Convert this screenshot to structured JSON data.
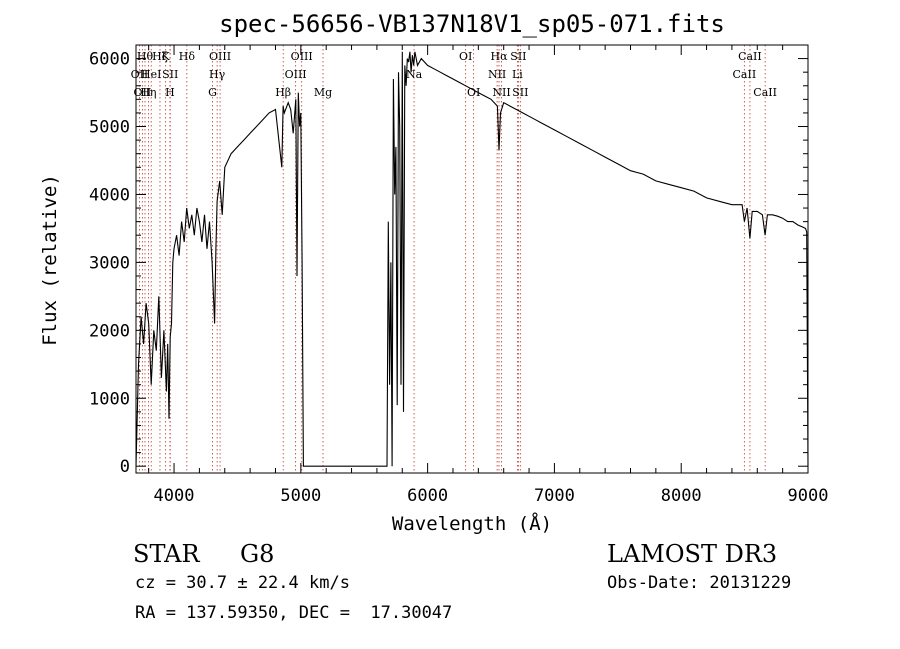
{
  "chart_data": {
    "type": "line",
    "title": "spec-56656-VB137N18V1_sp05-071.fits",
    "xlabel": "Wavelength (Å)",
    "ylabel": "Flux (relative)",
    "xlim": [
      3700,
      9000
    ],
    "ylim": [
      -100,
      6200
    ],
    "x_ticks": [
      4000,
      5000,
      6000,
      7000,
      8000,
      9000
    ],
    "y_ticks": [
      0,
      1000,
      2000,
      3000,
      4000,
      5000,
      6000
    ],
    "grid": false,
    "line_color": "#000000",
    "marker_color": "#c0392b",
    "series": [
      {
        "x": [
          3700,
          3720,
          3740,
          3760,
          3780,
          3800,
          3820,
          3840,
          3860,
          3880,
          3900,
          3920,
          3940,
          3950,
          3960,
          3970,
          3980,
          3990,
          4000,
          4020,
          4040,
          4060,
          4080,
          4100,
          4120,
          4140,
          4160,
          4180,
          4200,
          4220,
          4240,
          4260,
          4280,
          4300,
          4320,
          4330,
          4340,
          4360,
          4380,
          4400,
          4450,
          4500,
          4550,
          4600,
          4650,
          4700,
          4750,
          4800,
          4850,
          4860,
          4870,
          4900,
          4920,
          4940,
          4960,
          4970,
          4980,
          4990,
          5000,
          5010,
          5020,
          5680,
          5690,
          5700,
          5710,
          5720,
          5730,
          5740,
          5750,
          5760,
          5770,
          5780,
          5790,
          5800,
          5810,
          5820,
          5830,
          5840,
          5850,
          5860,
          5870,
          5880,
          5890,
          5900,
          5920,
          5950,
          6000,
          6050,
          6100,
          6150,
          6200,
          6250,
          6300,
          6350,
          6400,
          6450,
          6500,
          6550,
          6563,
          6575,
          6600,
          6650,
          6700,
          6750,
          6800,
          6850,
          6900,
          6950,
          7000,
          7100,
          7200,
          7300,
          7400,
          7500,
          7600,
          7700,
          7800,
          7900,
          8000,
          8100,
          8200,
          8300,
          8400,
          8480,
          8498,
          8520,
          8542,
          8560,
          8600,
          8640,
          8662,
          8680,
          8720,
          8760,
          8800,
          8840,
          8880,
          8920,
          8960,
          8980,
          8990,
          9000
        ],
        "y": [
          0,
          1500,
          2200,
          1800,
          2400,
          2100,
          1200,
          2000,
          1700,
          2500,
          1300,
          2000,
          1100,
          1800,
          700,
          1900,
          2100,
          3000,
          3200,
          3400,
          3100,
          3600,
          3300,
          3800,
          3500,
          3700,
          3400,
          3800,
          3600,
          3300,
          3700,
          3200,
          3600,
          3000,
          2100,
          3200,
          3900,
          4200,
          3700,
          4400,
          4600,
          4700,
          4800,
          4900,
          5000,
          5100,
          5200,
          5250,
          4400,
          5300,
          5200,
          5350,
          5250,
          4900,
          5400,
          2800,
          5500,
          5000,
          5200,
          3000,
          0,
          0,
          3600,
          1200,
          3000,
          0,
          5700,
          4000,
          4700,
          900,
          5800,
          5000,
          1200,
          6100,
          800,
          5900,
          5600,
          6000,
          5950,
          6100,
          5800,
          6050,
          5900,
          6100,
          5900,
          6000,
          5900,
          5850,
          5800,
          5750,
          5700,
          5650,
          5600,
          5550,
          5500,
          5450,
          5400,
          5300,
          4650,
          5200,
          5350,
          5300,
          5250,
          5200,
          5150,
          5100,
          5050,
          5000,
          4950,
          4850,
          4750,
          4650,
          4550,
          4450,
          4350,
          4300,
          4200,
          4150,
          4100,
          4050,
          3950,
          3900,
          3850,
          3850,
          3600,
          3800,
          3350,
          3750,
          3750,
          3700,
          3400,
          3700,
          3700,
          3680,
          3650,
          3600,
          3600,
          3550,
          3520,
          3500,
          3450,
          0
        ]
      }
    ],
    "lines": [
      {
        "wave": 3727,
        "label": "OII",
        "row": 2
      },
      {
        "wave": 3750,
        "label": "OII",
        "row": 3
      },
      {
        "wave": 3771,
        "label": "Hθ",
        "row": 1
      },
      {
        "wave": 3798,
        "label": "Hη",
        "row": 3
      },
      {
        "wave": 3820,
        "label": "HeI",
        "row": 2
      },
      {
        "wave": 3889,
        "label": "Hζ",
        "row": 1
      },
      {
        "wave": 3934,
        "label": "K",
        "row": 1
      },
      {
        "wave": 3968,
        "label": "H",
        "row": 3
      },
      {
        "wave": 3970,
        "label": "SII",
        "row": 2
      },
      {
        "wave": 4101,
        "label": "Hδ",
        "row": 1
      },
      {
        "wave": 4304,
        "label": "G",
        "row": 3
      },
      {
        "wave": 4340,
        "label": "Hγ",
        "row": 2
      },
      {
        "wave": 4363,
        "label": "OIII",
        "row": 1
      },
      {
        "wave": 4861,
        "label": "Hβ",
        "row": 3
      },
      {
        "wave": 4959,
        "label": "OIII",
        "row": 2
      },
      {
        "wave": 5007,
        "label": "OIII",
        "row": 1
      },
      {
        "wave": 5175,
        "label": "Mg",
        "row": 3
      },
      {
        "wave": 5893,
        "label": "Na",
        "row": 2
      },
      {
        "wave": 6300,
        "label": "OI",
        "row": 1
      },
      {
        "wave": 6363,
        "label": "OI",
        "row": 3
      },
      {
        "wave": 6548,
        "label": "NII",
        "row": 2
      },
      {
        "wave": 6563,
        "label": "Hα",
        "row": 1
      },
      {
        "wave": 6583,
        "label": "NII",
        "row": 3
      },
      {
        "wave": 6708,
        "label": "Li",
        "row": 2
      },
      {
        "wave": 6716,
        "label": "SII",
        "row": 1
      },
      {
        "wave": 6731,
        "label": "SII",
        "row": 3
      },
      {
        "wave": 8498,
        "label": "CaII",
        "row": 2
      },
      {
        "wave": 8542,
        "label": "CaII",
        "row": 1
      },
      {
        "wave": 8662,
        "label": "CaII",
        "row": 3
      }
    ]
  },
  "info": {
    "class_label": "STAR",
    "subclass": "G8",
    "cz": "cz = 30.7 ± 22.4 km/s",
    "coords": "RA = 137.59350, DEC =  17.30047",
    "survey": "LAMOST DR3",
    "obs_date": "Obs-Date: 20131229"
  }
}
